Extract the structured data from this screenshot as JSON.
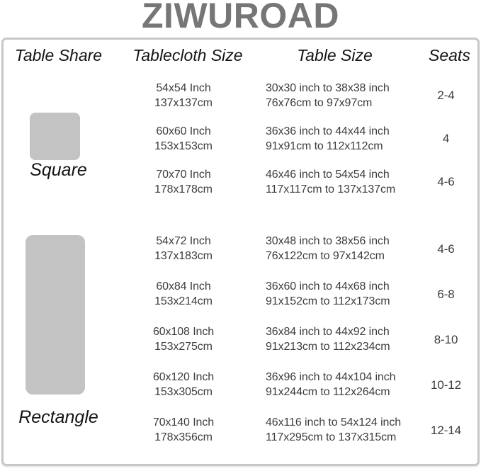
{
  "brand": "ZIWUROAD",
  "colors": {
    "brand_text": "#767676",
    "panel_border": "#c7c7c7",
    "shape_fill": "#c3c3c3",
    "data_text": "#3d3d3d",
    "heading_text": "#141414"
  },
  "table": {
    "headers": [
      "Table Share",
      "Tablecloth Size",
      "Table Size",
      "Seats"
    ],
    "sections": [
      {
        "label": "Square",
        "shape": "square",
        "rows": [
          {
            "cloth": [
              "54x54 Inch",
              "137x137cm"
            ],
            "size": [
              "30x30 inch to 38x38 inch",
              "76x76cm to 97x97cm"
            ],
            "seats": "2-4"
          },
          {
            "cloth": [
              "60x60 Inch",
              "153x153cm"
            ],
            "size": [
              "36x36 inch to 44x44 inch",
              "91x91cm to 112x112cm"
            ],
            "seats": "4"
          },
          {
            "cloth": [
              "70x70 Inch",
              "178x178cm"
            ],
            "size": [
              "46x46 inch to 54x54 inch",
              "117x117cm to 137x137cm"
            ],
            "seats": "4-6"
          }
        ]
      },
      {
        "label": "Rectangle",
        "shape": "rectangle",
        "rows": [
          {
            "cloth": [
              "54x72 Inch",
              "137x183cm"
            ],
            "size": [
              "30x48 inch to 38x56 inch",
              "76x122cm to 97x142cm"
            ],
            "seats": "4-6"
          },
          {
            "cloth": [
              "60x84 Inch",
              "153x214cm"
            ],
            "size": [
              "36x60 inch to 44x68 inch",
              "91x152cm to 112x173cm"
            ],
            "seats": "6-8"
          },
          {
            "cloth": [
              "60x108 Inch",
              "153x275cm"
            ],
            "size": [
              "36x84 inch to 44x92 inch",
              "91x213cm to 112x234cm"
            ],
            "seats": "8-10"
          },
          {
            "cloth": [
              "60x120 Inch",
              "153x305cm"
            ],
            "size": [
              "36x96 inch to 44x104 inch",
              "91x244cm to 112x264cm"
            ],
            "seats": "10-12"
          },
          {
            "cloth": [
              "70x140 Inch",
              "178x356cm"
            ],
            "size": [
              "46x116 inch to 54x124 inch",
              "117x295cm to 137x315cm"
            ],
            "seats": "12-14"
          }
        ]
      }
    ]
  },
  "chart_data": {
    "type": "table",
    "title": "ZIWUROAD",
    "columns": [
      "Table Share",
      "Tablecloth Size",
      "Table Size",
      "Seats"
    ],
    "rows": [
      [
        "Square",
        "54x54 Inch / 137x137cm",
        "30x30 inch to 38x38 inch / 76x76cm to 97x97cm",
        "2-4"
      ],
      [
        "Square",
        "60x60 Inch / 153x153cm",
        "36x36 inch to 44x44 inch / 91x91cm to 112x112cm",
        "4"
      ],
      [
        "Square",
        "70x70 Inch / 178x178cm",
        "46x46 inch to 54x54 inch / 117x117cm to 137x137cm",
        "4-6"
      ],
      [
        "Rectangle",
        "54x72 Inch / 137x183cm",
        "30x48 inch to 38x56 inch / 76x122cm to 97x142cm",
        "4-6"
      ],
      [
        "Rectangle",
        "60x84 Inch / 153x214cm",
        "36x60 inch to 44x68 inch / 91x152cm to 112x173cm",
        "6-8"
      ],
      [
        "Rectangle",
        "60x108 Inch / 153x275cm",
        "36x84 inch to 44x92 inch / 91x213cm to 112x234cm",
        "8-10"
      ],
      [
        "Rectangle",
        "60x120 Inch / 153x305cm",
        "36x96 inch to 44x104 inch / 91x244cm to 112x264cm",
        "10-12"
      ],
      [
        "Rectangle",
        "70x140 Inch / 178x356cm",
        "46x116 inch to 54x124 inch / 117x295cm to 137x315cm",
        "12-14"
      ]
    ]
  }
}
